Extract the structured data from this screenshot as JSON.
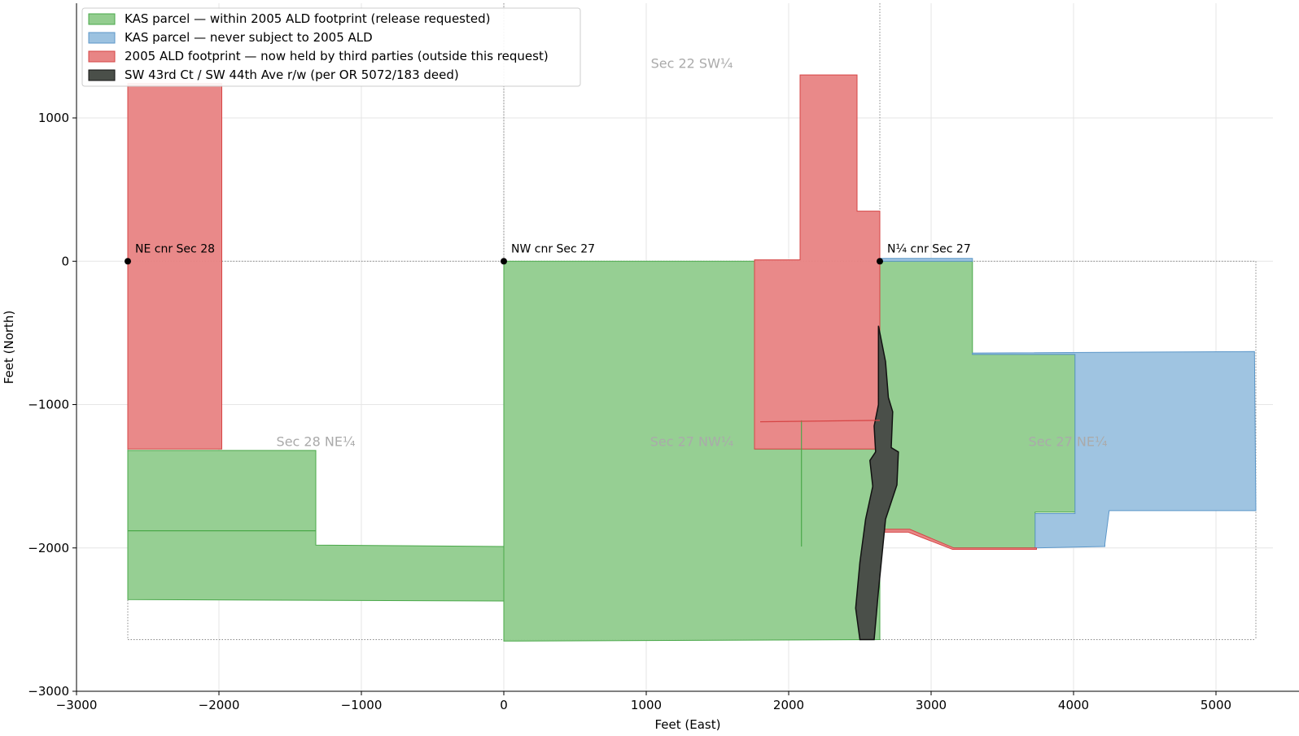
{
  "chart_data": {
    "type": "map",
    "xlabel": "Feet (East)",
    "ylabel": "Feet (North)",
    "xlim": [
      -3000,
      5400
    ],
    "ylim": [
      -3000,
      1800
    ],
    "xticks": [
      {
        "value": -3000,
        "label": "−3000"
      },
      {
        "value": -2000,
        "label": "−2000"
      },
      {
        "value": -1000,
        "label": "−1000"
      },
      {
        "value": 0,
        "label": "0"
      },
      {
        "value": 1000,
        "label": "1000"
      },
      {
        "value": 2000,
        "label": "2000"
      },
      {
        "value": 3000,
        "label": "3000"
      },
      {
        "value": 4000,
        "label": "4000"
      },
      {
        "value": 5000,
        "label": "5000"
      }
    ],
    "yticks": [
      {
        "value": -3000,
        "label": "−3000"
      },
      {
        "value": -2000,
        "label": "−2000"
      },
      {
        "value": -1000,
        "label": "−1000"
      },
      {
        "value": 0,
        "label": "0"
      },
      {
        "value": 1000,
        "label": "1000"
      }
    ],
    "grid": true,
    "legend_position": "top-left",
    "colors": {
      "green": "#93cd8f",
      "green_edge": "#4aa84a",
      "blue": "#9cc2e0",
      "blue_edge": "#5c97c9",
      "red": "#e88585",
      "red_edge": "#d64545",
      "road": "#4a4f49",
      "road_edge": "#111111"
    },
    "legend": [
      {
        "label": "KAS parcel — within 2005 ALD footprint (release requested)",
        "color": "#93cd8f",
        "edge": "#4aa84a"
      },
      {
        "label": "KAS parcel — never subject to 2005 ALD",
        "color": "#9cc2e0",
        "edge": "#5c97c9"
      },
      {
        "label": "2005 ALD footprint — now held by third parties (outside this request)",
        "color": "#e88585",
        "edge": "#d64545"
      },
      {
        "label": "SW 43rd Ct / SW 44th Ave r/w (per OR 5072/183 deed)",
        "color": "#4a4f49",
        "edge": "#111111"
      }
    ],
    "section_labels": [
      {
        "text": "Sec 22 SW¼",
        "x": 1320,
        "y": 1350
      },
      {
        "text": "Sec 28 NE¼",
        "x": -1320,
        "y": -1290
      },
      {
        "text": "Sec 27 NW¼",
        "x": 1320,
        "y": -1290
      },
      {
        "text": "Sec 27 NE¼",
        "x": 3960,
        "y": -1290
      }
    ],
    "corners": [
      {
        "label": "NE cnr Sec 28",
        "x": -2640,
        "y": 0
      },
      {
        "label": "NW cnr Sec 27",
        "x": 0,
        "y": 0
      },
      {
        "label": "N¼ cnr Sec 27",
        "x": 2640,
        "y": 0
      }
    ],
    "section_lines": [
      [
        [
          -2640,
          0
        ],
        [
          5280,
          0
        ]
      ],
      [
        [
          0,
          1800
        ],
        [
          0,
          0
        ]
      ],
      [
        [
          2640,
          1800
        ],
        [
          2640,
          0
        ]
      ],
      [
        [
          -2640,
          0
        ],
        [
          -2640,
          -2640
        ]
      ],
      [
        [
          -2640,
          -2640
        ],
        [
          5280,
          -2640
        ]
      ],
      [
        [
          5280,
          0
        ],
        [
          5280,
          -2640
        ]
      ]
    ],
    "polygons": [
      {
        "category": "green",
        "points": [
          [
            -2640,
            -1320
          ],
          [
            -1320,
            -1320
          ],
          [
            -1320,
            -1980
          ],
          [
            0,
            -1990
          ],
          [
            0,
            -2370
          ],
          [
            -2640,
            -2360
          ]
        ]
      },
      {
        "category": "green",
        "points": [
          [
            0,
            0
          ],
          [
            1760,
            0
          ],
          [
            1760,
            -1310
          ],
          [
            2640,
            -1310
          ],
          [
            2640,
            -2640
          ],
          [
            0,
            -2650
          ]
        ]
      },
      {
        "category": "green",
        "points": [
          [
            2640,
            0
          ],
          [
            3290,
            0
          ],
          [
            3290,
            -650
          ],
          [
            4010,
            -650
          ],
          [
            4010,
            -1750
          ],
          [
            3730,
            -1750
          ],
          [
            3730,
            -2000
          ],
          [
            3150,
            -2000
          ],
          [
            2860,
            -1880
          ],
          [
            2640,
            -1880
          ]
        ]
      },
      {
        "category": "blue",
        "points": [
          [
            2640,
            0
          ],
          [
            3290,
            0
          ],
          [
            3290,
            20
          ],
          [
            2640,
            20
          ]
        ]
      },
      {
        "category": "blue",
        "points": [
          [
            3290,
            -640
          ],
          [
            5270,
            -630
          ],
          [
            5280,
            -1740
          ],
          [
            4250,
            -1740
          ],
          [
            4220,
            -1970
          ],
          [
            4220,
            -1990
          ],
          [
            3730,
            -2000
          ],
          [
            3730,
            -1760
          ],
          [
            4010,
            -1760
          ],
          [
            4010,
            -650
          ],
          [
            3290,
            -650
          ]
        ]
      },
      {
        "category": "red",
        "points": [
          [
            -2640,
            1240
          ],
          [
            -1980,
            1240
          ],
          [
            -1980,
            -1310
          ],
          [
            -2640,
            -1310
          ]
        ]
      },
      {
        "category": "red",
        "points": [
          [
            2080,
            1300
          ],
          [
            2480,
            1300
          ],
          [
            2480,
            350
          ],
          [
            2640,
            350
          ],
          [
            2640,
            -1310
          ],
          [
            1760,
            -1310
          ],
          [
            1760,
            10
          ],
          [
            2080,
            10
          ]
        ]
      },
      {
        "category": "red",
        "points": [
          [
            2640,
            -1870
          ],
          [
            2850,
            -1870
          ],
          [
            3160,
            -2000
          ],
          [
            3740,
            -2000
          ],
          [
            3740,
            -2010
          ],
          [
            3150,
            -2010
          ],
          [
            2840,
            -1890
          ],
          [
            2640,
            -1890
          ]
        ]
      },
      {
        "category": "road",
        "points": [
          [
            2630,
            -450
          ],
          [
            2680,
            -700
          ],
          [
            2700,
            -950
          ],
          [
            2730,
            -1050
          ],
          [
            2720,
            -1300
          ],
          [
            2770,
            -1330
          ],
          [
            2760,
            -1560
          ],
          [
            2680,
            -1800
          ],
          [
            2630,
            -2300
          ],
          [
            2600,
            -2640
          ],
          [
            2500,
            -2640
          ],
          [
            2470,
            -2420
          ],
          [
            2500,
            -2100
          ],
          [
            2540,
            -1800
          ],
          [
            2590,
            -1570
          ],
          [
            2570,
            -1390
          ],
          [
            2610,
            -1330
          ],
          [
            2600,
            -1150
          ],
          [
            2630,
            -1000
          ]
        ]
      }
    ],
    "lines": [
      {
        "category": "green",
        "points": [
          [
            -2640,
            -1880
          ],
          [
            -1320,
            -1880
          ]
        ]
      },
      {
        "category": "green",
        "points": [
          [
            2090,
            -1110
          ],
          [
            2090,
            -1990
          ]
        ]
      },
      {
        "category": "red",
        "points": [
          [
            1800,
            -1120
          ],
          [
            2640,
            -1110
          ]
        ]
      }
    ]
  }
}
